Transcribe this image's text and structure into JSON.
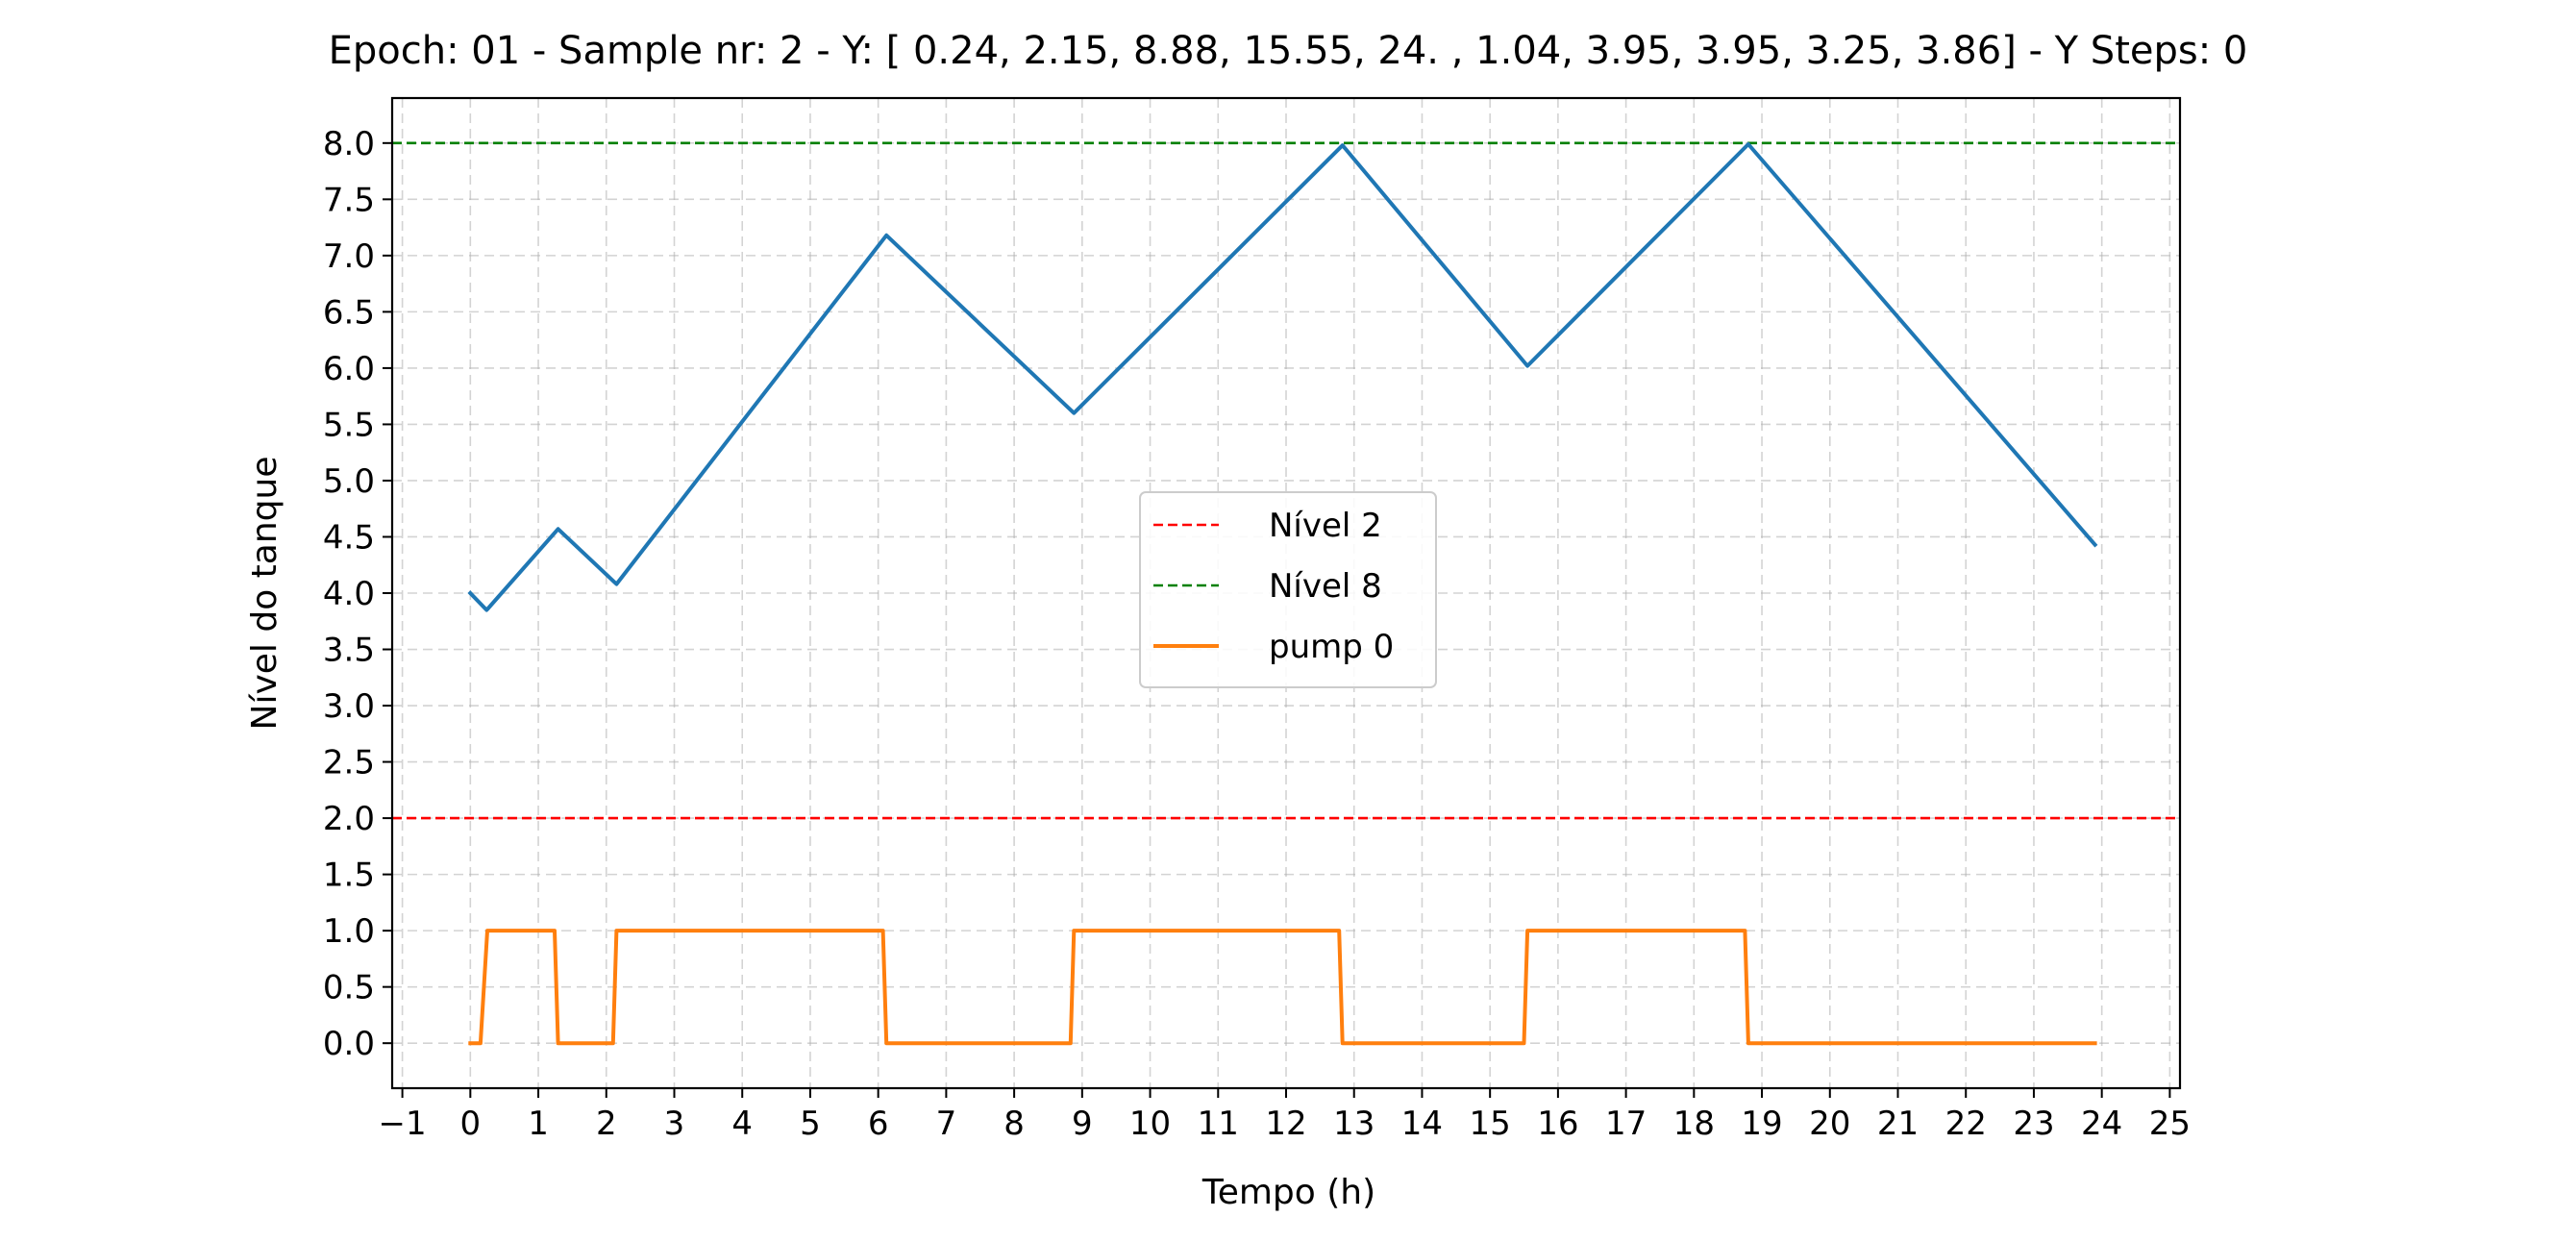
{
  "chart_data": {
    "type": "line",
    "title": "Epoch: 01 - Sample nr: 2 - Y: [ 0.24,  2.15,  8.88, 15.55, 24.  ,  1.04,  3.95,  3.95,  3.25,  3.86] - Y Steps: 0",
    "xlabel": "Tempo (h)",
    "ylabel": "Nível do tanque",
    "xlim": [
      -1.15,
      25.15
    ],
    "ylim": [
      -0.4,
      8.4
    ],
    "xticks": [
      -1,
      0,
      1,
      2,
      3,
      4,
      5,
      6,
      7,
      8,
      9,
      10,
      11,
      12,
      13,
      14,
      15,
      16,
      17,
      18,
      19,
      20,
      21,
      22,
      23,
      24,
      25
    ],
    "yticks": [
      0.0,
      0.5,
      1.0,
      1.5,
      2.0,
      2.5,
      3.0,
      3.5,
      4.0,
      4.5,
      5.0,
      5.5,
      6.0,
      6.5,
      7.0,
      7.5,
      8.0
    ],
    "grid": true,
    "legend_position": "center",
    "series": [
      {
        "name": "",
        "kind": "line",
        "color": "#1f77b4",
        "x": [
          0,
          0.24,
          1.29,
          2.15,
          6.12,
          8.88,
          12.83,
          15.55,
          18.8,
          23.9
        ],
        "y": [
          4.0,
          3.85,
          4.57,
          4.08,
          7.18,
          5.6,
          7.98,
          6.02,
          7.99,
          4.43
        ]
      },
      {
        "name": "Nível 2",
        "kind": "hline",
        "style": "dashed",
        "color": "#ff0000",
        "value": 2.0
      },
      {
        "name": "Nível 8",
        "kind": "hline",
        "style": "dashed",
        "color": "#008000",
        "value": 8.0
      },
      {
        "name": "pump 0",
        "kind": "line",
        "color": "#ff7f0e",
        "x": [
          0,
          0.15,
          0.25,
          1.24,
          1.29,
          2.1,
          2.15,
          6.07,
          6.12,
          8.83,
          8.88,
          12.78,
          12.83,
          15.5,
          15.55,
          18.75,
          18.8,
          23.9
        ],
        "y": [
          0,
          0,
          1,
          1,
          0,
          0,
          1,
          1,
          0,
          0,
          1,
          1,
          0,
          0,
          1,
          1,
          0,
          0
        ]
      }
    ]
  }
}
